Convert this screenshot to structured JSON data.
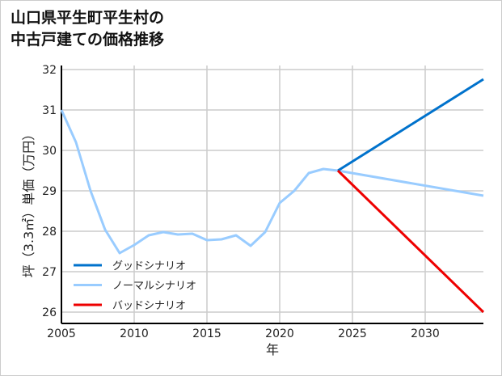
{
  "title_lines": [
    "山口県平生町平生村の",
    "中古戸建ての価格推移"
  ],
  "chart_data": {
    "type": "line",
    "title": "山口県平生町平生村の中古戸建ての価格推移",
    "xlabel": "年",
    "ylabel": "坪（3.3㎡）単価（万円）",
    "xlim": [
      2005,
      2034
    ],
    "ylim": [
      25.72,
      32.1
    ],
    "xticks": [
      2005,
      2010,
      2015,
      2020,
      2025,
      2030
    ],
    "yticks": [
      26,
      27,
      28,
      29,
      30,
      31,
      32
    ],
    "grid": true,
    "legend_position": "bottom-left",
    "series": [
      {
        "name": "グッドシナリオ",
        "color": "#0072cc",
        "x": [
          2024,
          2034
        ],
        "y": [
          29.5,
          31.76
        ]
      },
      {
        "name": "ノーマルシナリオ",
        "color": "#99ccff",
        "x": [
          2005,
          2006,
          2007,
          2008,
          2009,
          2010,
          2011,
          2012,
          2013,
          2014,
          2015,
          2016,
          2017,
          2018,
          2019,
          2020,
          2021,
          2022,
          2023,
          2024,
          2034
        ],
        "y": [
          31.0,
          30.2,
          29.0,
          28.04,
          27.46,
          27.66,
          27.9,
          27.98,
          27.92,
          27.94,
          27.78,
          27.8,
          27.9,
          27.64,
          27.98,
          28.7,
          29.0,
          29.44,
          29.54,
          29.5,
          28.88
        ]
      },
      {
        "name": "バッドシナリオ",
        "color": "#ee0000",
        "x": [
          2024,
          2034
        ],
        "y": [
          29.5,
          26.0
        ]
      }
    ]
  }
}
